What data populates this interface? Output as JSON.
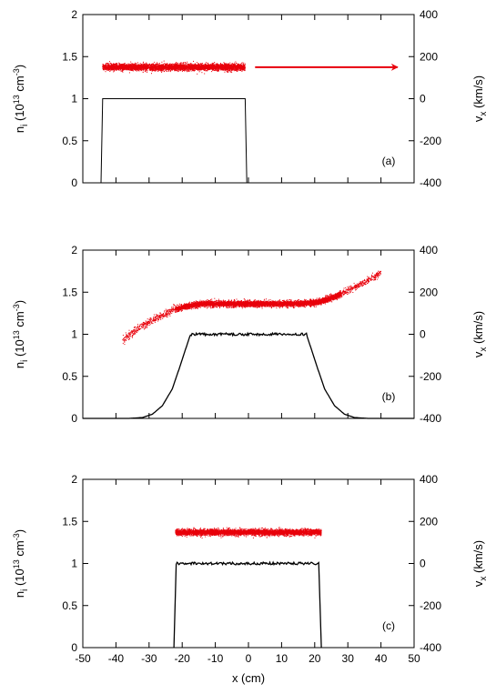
{
  "chart_data": [
    {
      "type": "scatter",
      "panel_label": "(a)",
      "xlim": [
        -50,
        50
      ],
      "ylim": [
        0,
        2
      ],
      "y2lim": [
        -400,
        400
      ],
      "ylabel": "n_i (10^13 cm^-3)",
      "y2label": "v_x (km/s)",
      "yticks": [
        "0",
        "0.5",
        "1",
        "1.5",
        "2"
      ],
      "y2ticks": [
        "-400",
        "-200",
        "0",
        "200",
        "400"
      ],
      "density_line": {
        "x": [
          -44.5,
          -44,
          -1,
          -0.5
        ],
        "y": [
          0,
          1,
          1,
          0
        ]
      },
      "velocity_cloud": {
        "x_start": -44,
        "x_end": -1,
        "v_center": 150,
        "v_spread": 14,
        "profile": {
          "x": [
            -44,
            -1
          ],
          "v": [
            150,
            150
          ]
        }
      },
      "arrow": {
        "x_start": 2,
        "x_end": 45,
        "v": 150,
        "color": "#e8000b"
      },
      "grid": false,
      "colors": {
        "density": "#000000",
        "velocity": "#e8000b"
      }
    },
    {
      "type": "scatter",
      "panel_label": "(b)",
      "xlim": [
        -50,
        50
      ],
      "ylim": [
        0,
        2
      ],
      "y2lim": [
        -400,
        400
      ],
      "ylabel": "n_i (10^13 cm^-3)",
      "y2label": "v_x (km/s)",
      "yticks": [
        "0",
        "0.5",
        "1",
        "1.5",
        "2"
      ],
      "y2ticks": [
        "-400",
        "-200",
        "0",
        "200",
        "400"
      ],
      "density_line": {
        "x": [
          -50,
          -36,
          -32,
          -29,
          -26,
          -23,
          -21,
          -19,
          -17.5,
          17.5,
          19,
          21,
          23,
          26,
          29,
          32,
          36,
          50
        ],
        "y": [
          0,
          0,
          0.01,
          0.05,
          0.15,
          0.35,
          0.58,
          0.82,
          1.0,
          1.0,
          0.82,
          0.58,
          0.35,
          0.15,
          0.05,
          0.01,
          0,
          0
        ]
      },
      "velocity_cloud": {
        "x_start": -38,
        "x_end": 40,
        "v_spread": 12,
        "profile": {
          "x": [
            -38,
            -32,
            -26,
            -22,
            -18,
            -14,
            14,
            20,
            24,
            27,
            30,
            34,
            40
          ],
          "v": [
            -25,
            40,
            90,
            120,
            135,
            145,
            145,
            150,
            165,
            185,
            210,
            240,
            290
          ]
        }
      },
      "grid": false,
      "colors": {
        "density": "#000000",
        "velocity": "#e8000b"
      }
    },
    {
      "type": "scatter",
      "panel_label": "(c)",
      "xlim": [
        -50,
        50
      ],
      "ylim": [
        0,
        2
      ],
      "y2lim": [
        -400,
        400
      ],
      "xlabel": "x (cm)",
      "ylabel": "n_i (10^13 cm^-3)",
      "y2label": "v_x (km/s)",
      "xticks": [
        "-50",
        "-40",
        "-30",
        "-20",
        "-10",
        "0",
        "10",
        "20",
        "30",
        "40",
        "50"
      ],
      "yticks": [
        "0",
        "0.5",
        "1",
        "1.5",
        "2"
      ],
      "y2ticks": [
        "-400",
        "-200",
        "0",
        "200",
        "400"
      ],
      "density_line": {
        "x": [
          -22.5,
          -21.8,
          21.3,
          22
        ],
        "y": [
          0,
          1,
          1,
          0
        ]
      },
      "velocity_cloud": {
        "x_start": -22,
        "x_end": 22,
        "v_center": 148,
        "v_spread": 13,
        "profile": {
          "x": [
            -22,
            22
          ],
          "v": [
            148,
            148
          ]
        }
      },
      "grid": false,
      "colors": {
        "density": "#000000",
        "velocity": "#e8000b"
      }
    }
  ]
}
